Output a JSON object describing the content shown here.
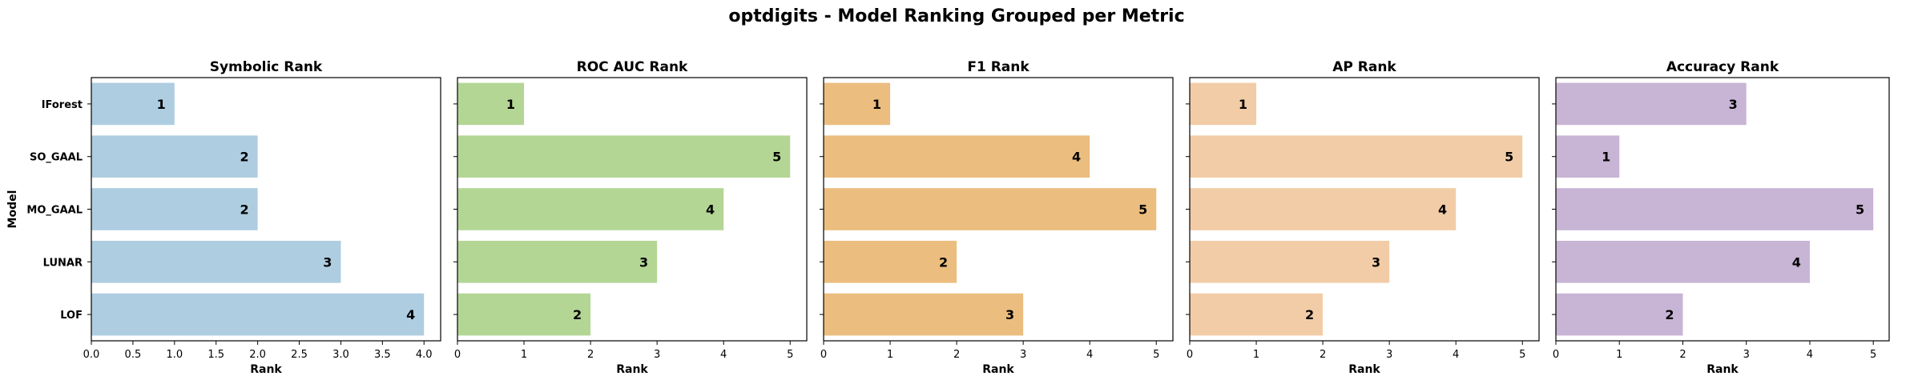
{
  "suptitle": "optdigits - Model Ranking Grouped per Metric",
  "chart_data": [
    {
      "type": "bar",
      "orientation": "horizontal",
      "title": "Symbolic Rank",
      "categories": [
        "IForest",
        "SO_GAAL",
        "MO_GAAL",
        "LUNAR",
        "LOF"
      ],
      "values": [
        1,
        2,
        2,
        3,
        4
      ],
      "xlabel": "Rank",
      "ylabel": "Model",
      "xlim": [
        0,
        4.2
      ],
      "xticks": [
        0.0,
        0.5,
        1.0,
        1.5,
        2.0,
        2.5,
        3.0,
        3.5,
        4.0
      ],
      "xtick_labels": [
        "0.0",
        "0.5",
        "1.0",
        "1.5",
        "2.0",
        "2.5",
        "3.0",
        "3.5",
        "4.0"
      ],
      "color": "#aecde0"
    },
    {
      "type": "bar",
      "orientation": "horizontal",
      "title": "ROC AUC Rank",
      "categories": [
        "IForest",
        "SO_GAAL",
        "MO_GAAL",
        "LUNAR",
        "LOF"
      ],
      "values": [
        1,
        5,
        4,
        3,
        2
      ],
      "xlabel": "Rank",
      "ylabel": "",
      "xlim": [
        0,
        5.25
      ],
      "xticks": [
        0,
        1,
        2,
        3,
        4,
        5
      ],
      "xtick_labels": [
        "0",
        "1",
        "2",
        "3",
        "4",
        "5"
      ],
      "color": "#b4d695"
    },
    {
      "type": "bar",
      "orientation": "horizontal",
      "title": "F1 Rank",
      "categories": [
        "IForest",
        "SO_GAAL",
        "MO_GAAL",
        "LUNAR",
        "LOF"
      ],
      "values": [
        1,
        4,
        5,
        2,
        3
      ],
      "xlabel": "Rank",
      "ylabel": "",
      "xlim": [
        0,
        5.25
      ],
      "xticks": [
        0,
        1,
        2,
        3,
        4,
        5
      ],
      "xtick_labels": [
        "0",
        "1",
        "2",
        "3",
        "4",
        "5"
      ],
      "color": "#ebbd7f"
    },
    {
      "type": "bar",
      "orientation": "horizontal",
      "title": "AP Rank",
      "categories": [
        "IForest",
        "SO_GAAL",
        "MO_GAAL",
        "LUNAR",
        "LOF"
      ],
      "values": [
        1,
        5,
        4,
        3,
        2
      ],
      "xlabel": "Rank",
      "ylabel": "",
      "xlim": [
        0,
        5.25
      ],
      "xticks": [
        0,
        1,
        2,
        3,
        4,
        5
      ],
      "xtick_labels": [
        "0",
        "1",
        "2",
        "3",
        "4",
        "5"
      ],
      "color": "#f2cca6"
    },
    {
      "type": "bar",
      "orientation": "horizontal",
      "title": "Accuracy Rank",
      "categories": [
        "IForest",
        "SO_GAAL",
        "MO_GAAL",
        "LUNAR",
        "LOF"
      ],
      "values": [
        3,
        1,
        5,
        4,
        2
      ],
      "xlabel": "Rank",
      "ylabel": "",
      "xlim": [
        0,
        5.25
      ],
      "xticks": [
        0,
        1,
        2,
        3,
        4,
        5
      ],
      "xtick_labels": [
        "0",
        "1",
        "2",
        "3",
        "4",
        "5"
      ],
      "color": "#c8b4d4"
    }
  ]
}
